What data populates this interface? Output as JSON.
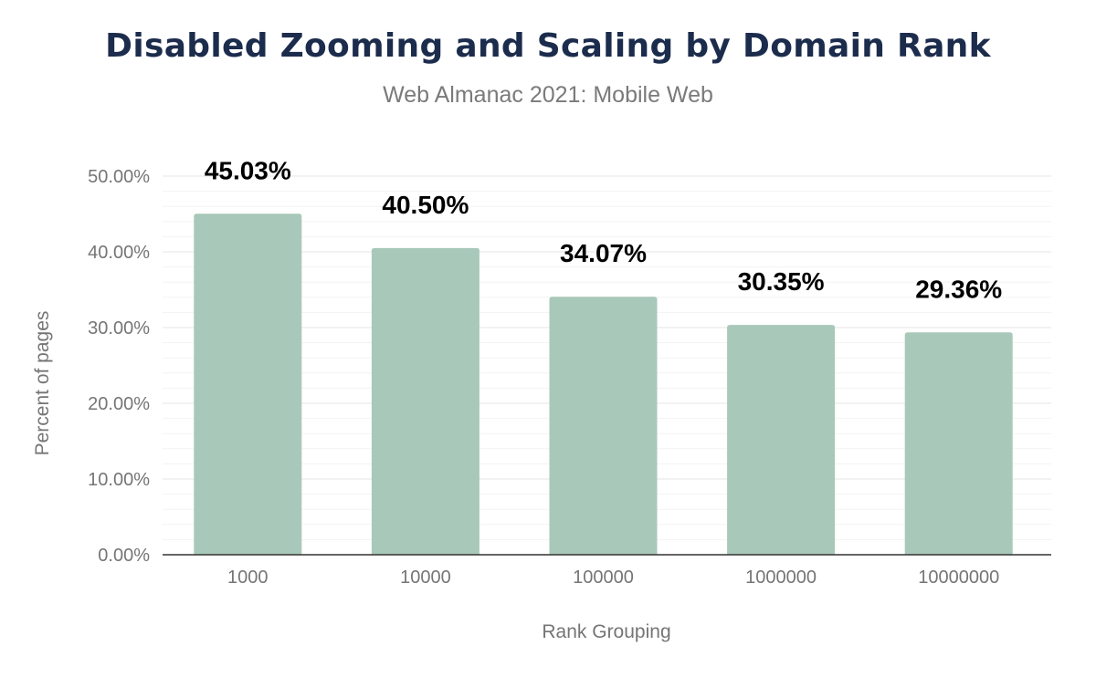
{
  "chart_data": {
    "type": "bar",
    "title": "Disabled Zooming and Scaling by Domain Rank",
    "subtitle": "Web Almanac 2021: Mobile Web",
    "xlabel": "Rank Grouping",
    "ylabel": "Percent of pages",
    "categories": [
      "1000",
      "10000",
      "100000",
      "1000000",
      "10000000"
    ],
    "values": [
      45.03,
      40.5,
      34.07,
      30.35,
      29.36
    ],
    "data_labels": [
      "45.03%",
      "40.50%",
      "34.07%",
      "30.35%",
      "29.36%"
    ],
    "y_ticks": [
      "0.00%",
      "10.00%",
      "20.00%",
      "30.00%",
      "40.00%",
      "50.00%"
    ],
    "ylim": [
      0,
      50
    ],
    "grid": true,
    "legend": "none",
    "colors": {
      "bar": "#a8c8b9",
      "title": "#1c2c4c",
      "axis": "#333333",
      "grid": "#ebebeb"
    }
  }
}
